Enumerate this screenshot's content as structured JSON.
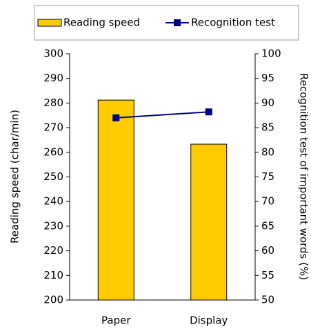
{
  "chart_data": {
    "type": "bar",
    "categories": [
      "Paper",
      "Display"
    ],
    "series": [
      {
        "name": "Reading speed",
        "type": "bar",
        "color": "#FFCC00",
        "values": [
          281.2,
          263.3
        ]
      },
      {
        "name": "Recognition test",
        "type": "line",
        "axis": "y2",
        "color": "#000080",
        "values": [
          87,
          88.2
        ]
      }
    ],
    "y_label": "Reading speed (char/min)",
    "y2_label": "Recognition test of important words (%)",
    "ylim": [
      200,
      300
    ],
    "yticks": [
      200,
      210,
      220,
      230,
      240,
      250,
      260,
      270,
      280,
      290,
      300
    ],
    "y2lim": [
      50,
      100
    ],
    "y2ticks": [
      50,
      55,
      60,
      65,
      70,
      75,
      80,
      85,
      90,
      95,
      100
    ]
  }
}
